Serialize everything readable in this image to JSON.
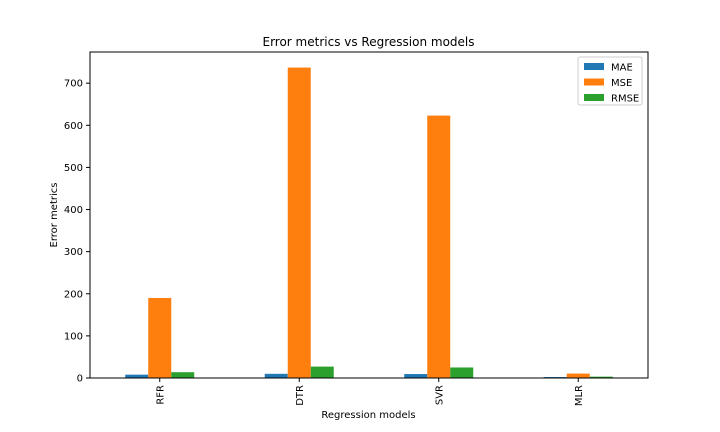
{
  "chart_data": {
    "type": "bar",
    "title": "Error metrics vs Regression models",
    "xlabel": "Regression models",
    "ylabel": "Error metrics",
    "categories": [
      "RFR",
      "DTR",
      "SVR",
      "MLR"
    ],
    "series": [
      {
        "name": "MAE",
        "values": [
          7.9,
          9.9,
          9.4,
          2.3
        ],
        "color": "#1f77b4"
      },
      {
        "name": "MSE",
        "values": [
          190,
          737,
          623,
          10.5
        ],
        "color": "#ff7f0e"
      },
      {
        "name": "RMSE",
        "values": [
          13.8,
          27.1,
          25.0,
          3.2
        ],
        "color": "#2ca02c"
      }
    ],
    "ylim": [
      0,
      774
    ],
    "yticks": [
      0,
      100,
      200,
      300,
      400,
      500,
      600,
      700
    ],
    "grid": false,
    "legend": "top-right"
  }
}
